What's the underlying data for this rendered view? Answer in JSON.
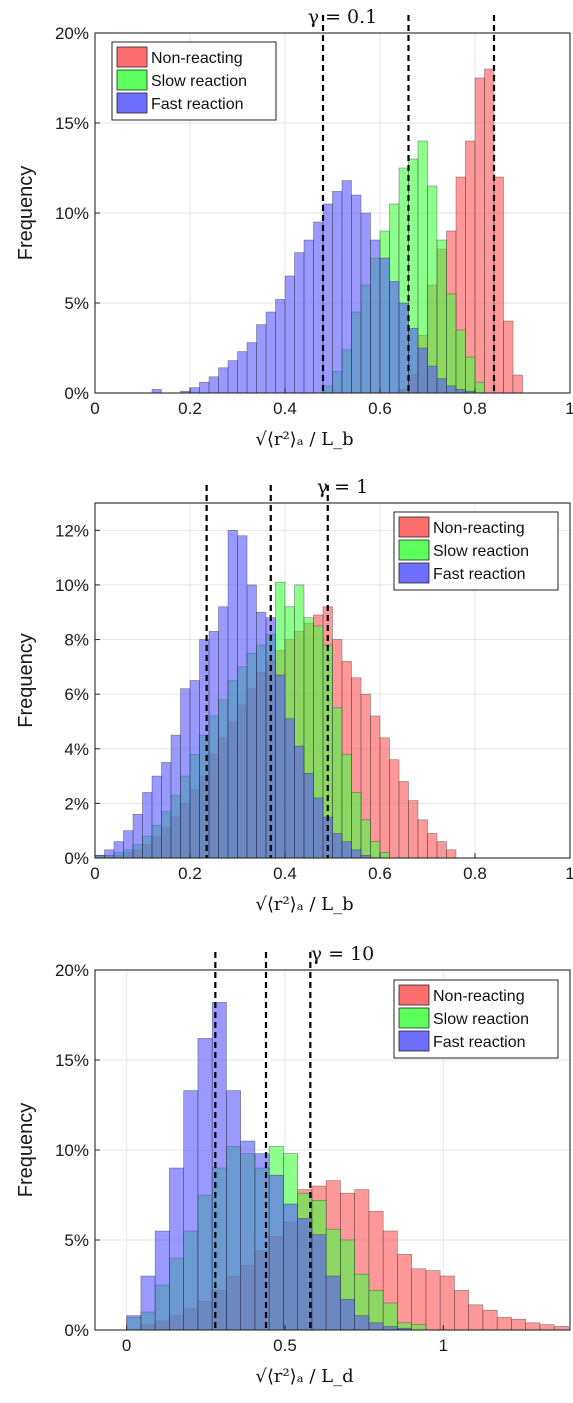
{
  "chart_data": [
    {
      "type": "bar",
      "title": "γ = 0.1",
      "xlabel": "√⟨r²⟩ₐ / L_b",
      "ylabel": "Frequency",
      "xlim": [
        0,
        1
      ],
      "ylim": [
        0,
        0.2
      ],
      "xticks": [
        0,
        0.2,
        0.4,
        0.6,
        0.8,
        1
      ],
      "xtick_labels": [
        "0",
        "0.2",
        "0.4",
        "0.6",
        "0.8",
        "1"
      ],
      "yticks": [
        0,
        0.05,
        0.1,
        0.15,
        0.2
      ],
      "ytick_labels": [
        "0%",
        "5%",
        "10%",
        "15%",
        "20%"
      ],
      "grid": true,
      "legend_position": "top-left",
      "bin_start": 0.0,
      "bin_width": 0.02,
      "vlines": [
        0.48,
        0.66,
        0.84
      ],
      "series": [
        {
          "name": "Non-reacting",
          "color": "#ff5555",
          "values": [
            0,
            0,
            0,
            0,
            0,
            0,
            0,
            0,
            0,
            0,
            0,
            0,
            0,
            0,
            0,
            0,
            0,
            0,
            0,
            0,
            0,
            0,
            0,
            0,
            0,
            0,
            0,
            0,
            0,
            0,
            0,
            0,
            0.002,
            0.01,
            0.032,
            0.06,
            0.08,
            0.09,
            0.12,
            0.14,
            0.175,
            0.18,
            0.12,
            0.04,
            0.01,
            0,
            0,
            0,
            0,
            0
          ]
        },
        {
          "name": "Slow reaction",
          "color": "#3fff3f",
          "values": [
            0,
            0,
            0,
            0,
            0,
            0,
            0,
            0,
            0,
            0,
            0,
            0,
            0,
            0,
            0,
            0,
            0,
            0,
            0,
            0,
            0,
            0,
            0,
            0,
            0.004,
            0.012,
            0.024,
            0.045,
            0.06,
            0.075,
            0.09,
            0.105,
            0.125,
            0.13,
            0.14,
            0.115,
            0.085,
            0.055,
            0.035,
            0.02,
            0.006,
            0,
            0,
            0,
            0,
            0,
            0,
            0,
            0,
            0
          ]
        },
        {
          "name": "Fast reaction",
          "color": "#5555ff",
          "values": [
            0,
            0,
            0,
            0,
            0,
            0,
            0.002,
            0,
            0,
            0.001,
            0.003,
            0.006,
            0.009,
            0.014,
            0.018,
            0.023,
            0.028,
            0.038,
            0.045,
            0.052,
            0.065,
            0.078,
            0.085,
            0.095,
            0.105,
            0.112,
            0.118,
            0.11,
            0.1,
            0.085,
            0.075,
            0.062,
            0.05,
            0.036,
            0.025,
            0.015,
            0.008,
            0.004,
            0.002,
            0.001,
            0,
            0,
            0,
            0,
            0,
            0,
            0,
            0,
            0,
            0
          ]
        }
      ]
    },
    {
      "type": "bar",
      "title": "γ = 1",
      "xlabel": "√⟨r²⟩ₐ / L_b",
      "ylabel": "Frequency",
      "xlim": [
        0,
        1
      ],
      "ylim": [
        0,
        0.13
      ],
      "xticks": [
        0,
        0.2,
        0.4,
        0.6,
        0.8,
        1
      ],
      "xtick_labels": [
        "0",
        "0.2",
        "0.4",
        "0.6",
        "0.8",
        "1"
      ],
      "yticks": [
        0,
        0.02,
        0.04,
        0.06,
        0.08,
        0.1,
        0.12
      ],
      "ytick_labels": [
        "0%",
        "2%",
        "4%",
        "6%",
        "8%",
        "10%",
        "12%"
      ],
      "grid": true,
      "legend_position": "top-right",
      "bin_start": 0.0,
      "bin_width": 0.02,
      "vlines": [
        0.235,
        0.37,
        0.49
      ],
      "series": [
        {
          "name": "Non-reacting",
          "color": "#ff5555",
          "values": [
            0.001,
            0.001,
            0.001,
            0.002,
            0.003,
            0.005,
            0.008,
            0.011,
            0.015,
            0.02,
            0.025,
            0.03,
            0.038,
            0.044,
            0.05,
            0.056,
            0.062,
            0.068,
            0.072,
            0.076,
            0.08,
            0.083,
            0.086,
            0.089,
            0.092,
            0.08,
            0.072,
            0.066,
            0.06,
            0.052,
            0.044,
            0.036,
            0.028,
            0.021,
            0.014,
            0.009,
            0.006,
            0.003,
            0,
            0,
            0,
            0,
            0,
            0,
            0,
            0,
            0,
            0,
            0,
            0
          ]
        },
        {
          "name": "Slow reaction",
          "color": "#3fff3f",
          "values": [
            0.001,
            0.001,
            0.002,
            0.003,
            0.005,
            0.008,
            0.012,
            0.017,
            0.023,
            0.03,
            0.038,
            0.045,
            0.052,
            0.058,
            0.065,
            0.07,
            0.075,
            0.078,
            0.082,
            0.101,
            0.092,
            0.1,
            0.088,
            0.085,
            0.078,
            0.055,
            0.038,
            0.024,
            0.014,
            0.006,
            0.002,
            0,
            0,
            0,
            0,
            0,
            0,
            0,
            0,
            0,
            0,
            0,
            0,
            0,
            0,
            0,
            0,
            0,
            0,
            0
          ]
        },
        {
          "name": "Fast reaction",
          "color": "#5555ff",
          "values": [
            0.001,
            0.003,
            0.006,
            0.01,
            0.016,
            0.024,
            0.03,
            0.035,
            0.045,
            0.062,
            0.065,
            0.08,
            0.083,
            0.092,
            0.12,
            0.118,
            0.1,
            0.09,
            0.088,
            0.067,
            0.051,
            0.041,
            0.031,
            0.022,
            0.015,
            0.009,
            0.006,
            0.003,
            0.001,
            0,
            0,
            0,
            0,
            0,
            0,
            0,
            0,
            0,
            0,
            0,
            0,
            0,
            0,
            0,
            0,
            0,
            0,
            0,
            0,
            0
          ]
        }
      ]
    },
    {
      "type": "bar",
      "title": "γ = 10",
      "xlabel": "√⟨r²⟩ₐ / L_d",
      "ylabel": "Frequency",
      "xlim": [
        -0.1,
        1.4
      ],
      "ylim": [
        0,
        0.2
      ],
      "xticks": [
        0,
        0.5,
        1
      ],
      "xtick_labels": [
        "0",
        "0.5",
        "1"
      ],
      "yticks": [
        0,
        0.05,
        0.1,
        0.15,
        0.2
      ],
      "ytick_labels": [
        "0%",
        "5%",
        "10%",
        "15%",
        "20%"
      ],
      "grid": true,
      "legend_position": "top-right",
      "bin_start": 0.0,
      "bin_width": 0.045,
      "vlines": [
        0.28,
        0.44,
        0.58
      ],
      "series": [
        {
          "name": "Non-reacting",
          "color": "#ff5555",
          "values": [
            0,
            0.003,
            0.005,
            0.008,
            0.012,
            0.016,
            0.022,
            0.03,
            0.036,
            0.044,
            0.052,
            0.06,
            0.078,
            0.08,
            0.083,
            0.076,
            0.078,
            0.066,
            0.055,
            0.042,
            0.034,
            0.033,
            0.03,
            0.022,
            0.014,
            0.011,
            0.007,
            0.006,
            0.004,
            0.003,
            0.002,
            0,
            0
          ]
        },
        {
          "name": "Slow reaction",
          "color": "#3fff3f",
          "values": [
            0.007,
            0.01,
            0.025,
            0.04,
            0.055,
            0.075,
            0.09,
            0.102,
            0.098,
            0.09,
            0.102,
            0.098,
            0.076,
            0.072,
            0.056,
            0.05,
            0.031,
            0.022,
            0.015,
            0.004,
            0.003,
            0,
            0,
            0,
            0,
            0,
            0,
            0,
            0,
            0,
            0,
            0,
            0
          ]
        },
        {
          "name": "Fast reaction",
          "color": "#5555ff",
          "values": [
            0.008,
            0.03,
            0.055,
            0.09,
            0.133,
            0.162,
            0.182,
            0.133,
            0.105,
            0.098,
            0.086,
            0.07,
            0.062,
            0.053,
            0.03,
            0.017,
            0.008,
            0.004,
            0.002,
            0.001,
            0,
            0,
            0,
            0,
            0,
            0,
            0,
            0,
            0,
            0,
            0,
            0,
            0
          ]
        }
      ]
    }
  ]
}
